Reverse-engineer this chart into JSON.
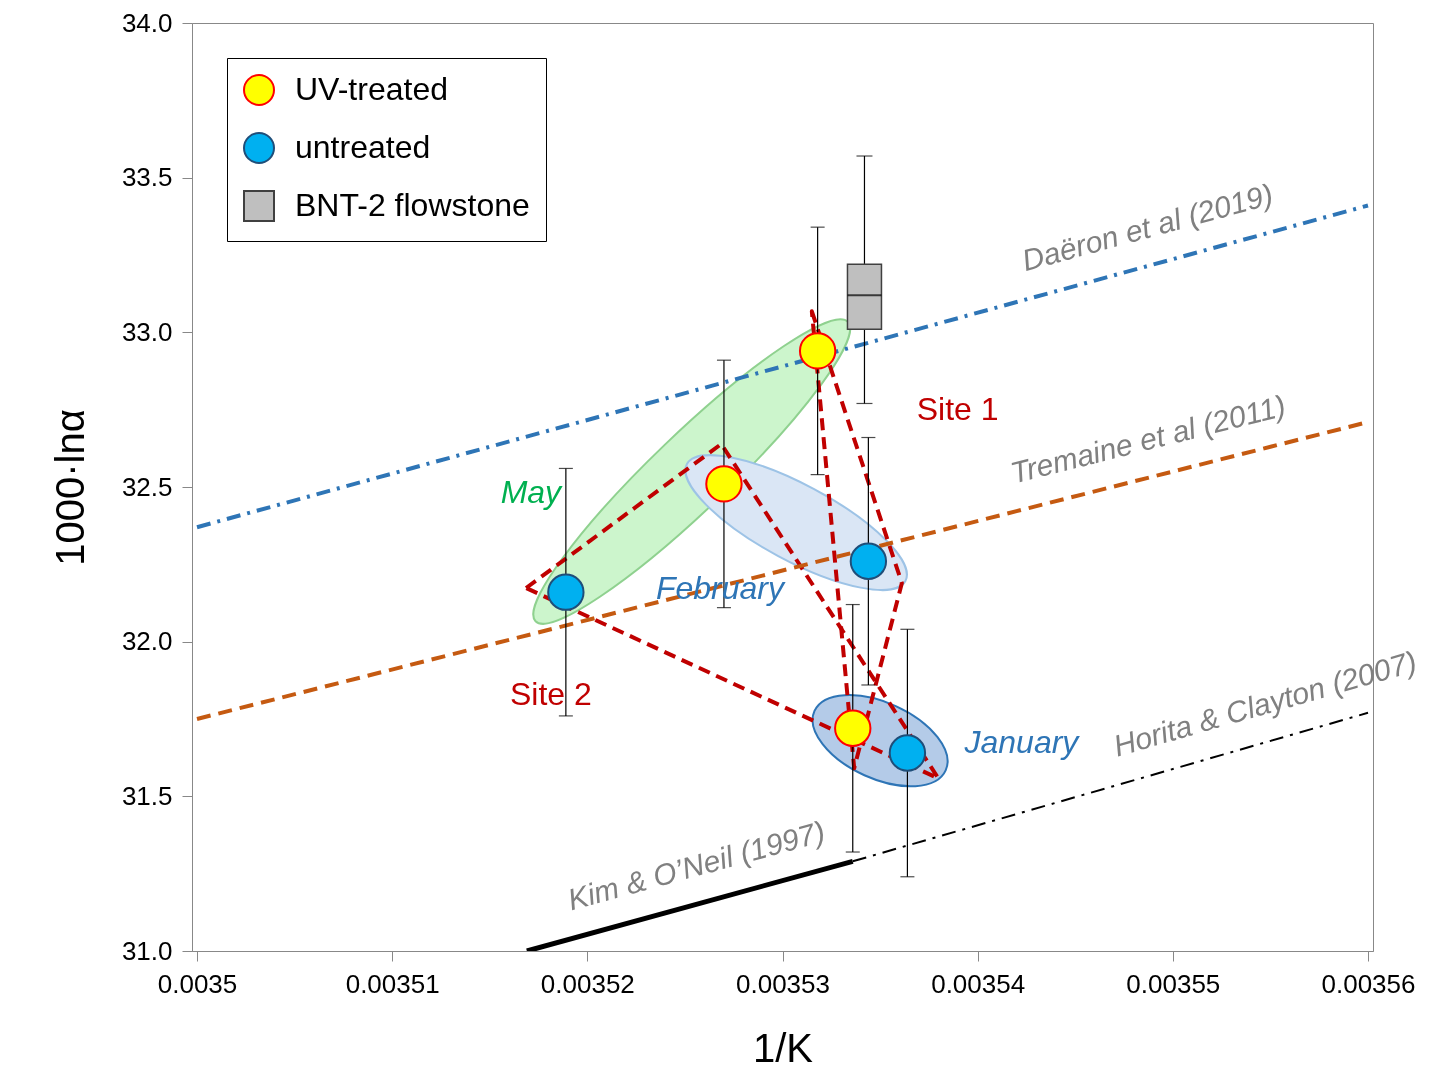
{
  "chart_data": {
    "type": "scatter",
    "xlabel": "1/K",
    "ylabel": "1000·lnα",
    "xlim": [
      0.0035,
      0.00356
    ],
    "xticks": [
      0.0035,
      0.00351,
      0.00352,
      0.00353,
      0.00354,
      0.00355,
      0.00356
    ],
    "ylim": [
      31,
      34
    ],
    "yticks": [
      {
        "value": 31,
        "label": "31.0"
      },
      31.5,
      {
        "value": 32,
        "label": "32.0"
      },
      32.5,
      {
        "value": 33,
        "label": "33.0"
      },
      33.5,
      {
        "value": 34,
        "label": "34.0"
      }
    ],
    "legend": "top left",
    "marker": "circle",
    "grid": false,
    "series": [
      {
        "name": "Daëron et al (2019)",
        "type": "line",
        "marker": "none",
        "line_style": "dashdot",
        "color": "#2e75b6",
        "x": [
          0.0035,
          0.00356
        ],
        "values": [
          32.37,
          33.41
        ]
      },
      {
        "name": "Tremaine et al (2011)",
        "type": "line",
        "marker": "none",
        "line_style": "dashed",
        "color": "#c55a11",
        "x": [
          0.0035,
          0.00356
        ],
        "values": [
          31.75,
          32.71
        ]
      },
      {
        "name": "Kim & O’Neil (1997)",
        "type": "line",
        "marker": "none",
        "line_style": "solid",
        "color": "#000000",
        "x": [
          0.0035169,
          0.0035336
        ],
        "values": [
          31.0,
          31.29
        ]
      },
      {
        "name": "Horita & Clayton (2007)",
        "type": "line",
        "marker": "none",
        "line_style": "dashdot",
        "color": "#000000",
        "x": [
          0.0035336,
          0.00356
        ],
        "values": [
          31.29,
          31.77
        ]
      },
      {
        "name": "UV-treated",
        "color": "#ffff00",
        "x": [
          0.0035318,
          0.003527,
          0.0035336
        ],
        "values": [
          32.94,
          32.51,
          31.72
        ],
        "errors": [
          0.4,
          0.4,
          0.4
        ]
      },
      {
        "name": "untreated",
        "color": "#00b0f0",
        "x": [
          0.0035189,
          0.0035344,
          0.0035364
        ],
        "values": [
          32.16,
          32.26,
          31.64
        ],
        "errors": [
          0.4,
          0.4,
          0.4
        ]
      },
      {
        "name": "BNT-2 flowstone",
        "type": "box",
        "color": "#bfbfbf",
        "x": [
          0.0035342
        ],
        "boxes": [
          {
            "low": 32.77,
            "q1": 33.01,
            "median": 33.12,
            "q3": 33.22,
            "high": 33.57
          }
        ]
      }
    ],
    "annotations": [
      "May",
      "February",
      "January",
      "Site 1",
      "Site 2"
    ]
  }
}
